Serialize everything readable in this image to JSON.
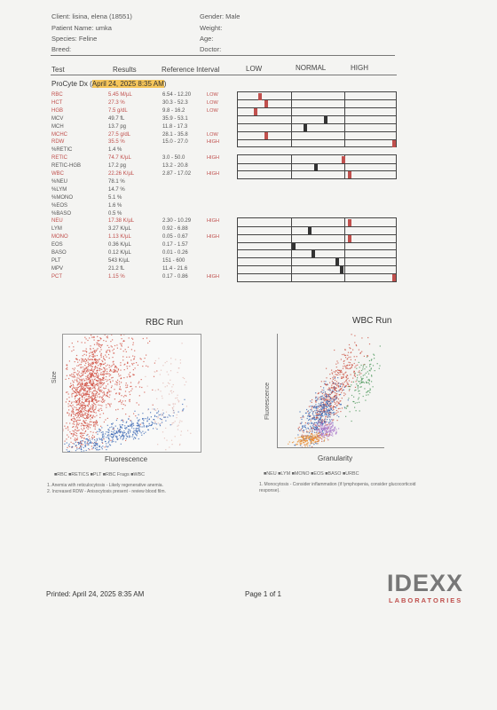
{
  "header": {
    "client": "Client: lisina, elena (18551)",
    "patient": "Patient Name: umka",
    "species": "Species: Feline",
    "breed": "Breed:",
    "gender": "Gender: Male",
    "weight": "Weight:",
    "age": "Age:",
    "doctor": "Doctor:"
  },
  "columns": {
    "test": "Test",
    "results": "Results",
    "reference": "Reference Interval",
    "low": "LOW",
    "normal": "NORMAL",
    "high": "HIGH"
  },
  "instrument": {
    "name": "ProCyte Dx (",
    "date": "April 24, 2025 8:35 AM",
    "close": ")"
  },
  "rows": [
    {
      "test": "RBC",
      "result": "5.45 M/µL",
      "ref": "6.54 - 12.20",
      "flag": "LOW",
      "red": true,
      "mark": 0.14
    },
    {
      "test": "HCT",
      "result": "27.3 %",
      "ref": "30.3 - 52.3",
      "flag": "LOW",
      "red": true,
      "mark": 0.18
    },
    {
      "test": "HGB",
      "result": "7.5 g/dL",
      "ref": "9.8 - 16.2",
      "flag": "LOW",
      "red": true,
      "mark": 0.11
    },
    {
      "test": "MCV",
      "result": "49.7 fL",
      "ref": "35.9 - 53.1",
      "flag": "",
      "red": false,
      "mark": 0.55
    },
    {
      "test": "MCH",
      "result": "13.7 pg",
      "ref": "11.8 - 17.3",
      "flag": "",
      "red": false,
      "mark": 0.42
    },
    {
      "test": "MCHC",
      "result": "27.5 g/dL",
      "ref": "28.1 - 35.8",
      "flag": "LOW",
      "red": true,
      "mark": 0.18
    },
    {
      "test": "RDW",
      "result": "35.5 %",
      "ref": "15.0 - 27.0",
      "flag": "HIGH",
      "red": true,
      "mark": 0.98
    },
    {
      "test": "%RETIC",
      "result": "1.4 %",
      "ref": "",
      "flag": "",
      "red": false,
      "mark": null
    },
    {
      "test": "RETIC",
      "result": "74.7 K/µL",
      "ref": "3.0 - 50.0",
      "flag": "HIGH",
      "red": true,
      "mark": 0.66
    },
    {
      "test": "RETIC-HGB",
      "result": "17.2 pg",
      "ref": "13.2 - 20.8",
      "flag": "",
      "red": false,
      "mark": 0.49
    },
    {
      "test": "WBC",
      "result": "22.26 K/µL",
      "ref": "2.87 - 17.02",
      "flag": "HIGH",
      "red": true,
      "mark": 0.7
    },
    {
      "test": "%NEU",
      "result": "78.1 %",
      "ref": "",
      "flag": "",
      "red": false,
      "mark": null
    },
    {
      "test": "%LYM",
      "result": "14.7 %",
      "ref": "",
      "flag": "",
      "red": false,
      "mark": null
    },
    {
      "test": "%MONO",
      "result": "5.1 %",
      "ref": "",
      "flag": "",
      "red": false,
      "mark": null
    },
    {
      "test": "%EOS",
      "result": "1.6 %",
      "ref": "",
      "flag": "",
      "red": false,
      "mark": null
    },
    {
      "test": "%BASO",
      "result": "0.5 %",
      "ref": "",
      "flag": "",
      "red": false,
      "mark": null
    },
    {
      "test": "NEU",
      "result": "17.38 K/µL",
      "ref": "2.30 - 10.29",
      "flag": "HIGH",
      "red": true,
      "mark": 0.7
    },
    {
      "test": "LYM",
      "result": "3.27 K/µL",
      "ref": "0.92 - 6.88",
      "flag": "",
      "red": false,
      "mark": 0.45
    },
    {
      "test": "MONO",
      "result": "1.13 K/µL",
      "ref": "0.05 - 0.67",
      "flag": "HIGH",
      "red": true,
      "mark": 0.7
    },
    {
      "test": "EOS",
      "result": "0.36 K/µL",
      "ref": "0.17 - 1.57",
      "flag": "",
      "red": false,
      "mark": 0.35
    },
    {
      "test": "BASO",
      "result": "0.12 K/µL",
      "ref": "0.01 - 0.26",
      "flag": "",
      "red": false,
      "mark": 0.47
    },
    {
      "test": "PLT",
      "result": "543 K/µL",
      "ref": "151 - 600",
      "flag": "",
      "red": false,
      "mark": 0.62
    },
    {
      "test": "MPV",
      "result": "21.2 fL",
      "ref": "11.4 - 21.6",
      "flag": "",
      "red": false,
      "mark": 0.65
    },
    {
      "test": "PCT",
      "result": "1.15 %",
      "ref": "0.17 - 0.86",
      "flag": "HIGH",
      "red": true,
      "mark": 0.98
    }
  ],
  "rbc_run": {
    "title": "RBC Run",
    "ylabel": "Size",
    "xlabel": "Fluorescence",
    "legend": "■RBC ■RETICS ■PLT ■RBC Frags ■WBC",
    "notes": [
      "1. Anemia with reticulocytosis - Likely regenerative anemia.",
      "2. Increased RDW - Anisocytosis present - review blood film."
    ]
  },
  "wbc_run": {
    "title": "WBC Run",
    "ylabel": "Fluorescence",
    "xlabel": "Granularity",
    "legend": "■NEU ■LYM ■MONO ■EOS ■BASO ■URBC",
    "notes": [
      "1. Monocytosis - Consider inflammation (if lymphopenia, consider glucocorticoid",
      "response)."
    ]
  },
  "footer": {
    "printed": "Printed: April 24, 2025 8:35 AM",
    "page": "Page 1 of 1",
    "logo": "IDEXX",
    "logo_sub": "LABORATORIES"
  },
  "colors": {
    "low_high_mark": "#c0504d",
    "normal_mark": "#333333",
    "rbc": "#cf4a3c",
    "retic": "#2f5fb0",
    "wbc_neu": "#c94b3b",
    "wbc_lym": "#2f5fb0",
    "wbc_mono": "#a877c9",
    "wbc_eos": "#e8892a",
    "wbc_baso": "#3d8f4d"
  }
}
